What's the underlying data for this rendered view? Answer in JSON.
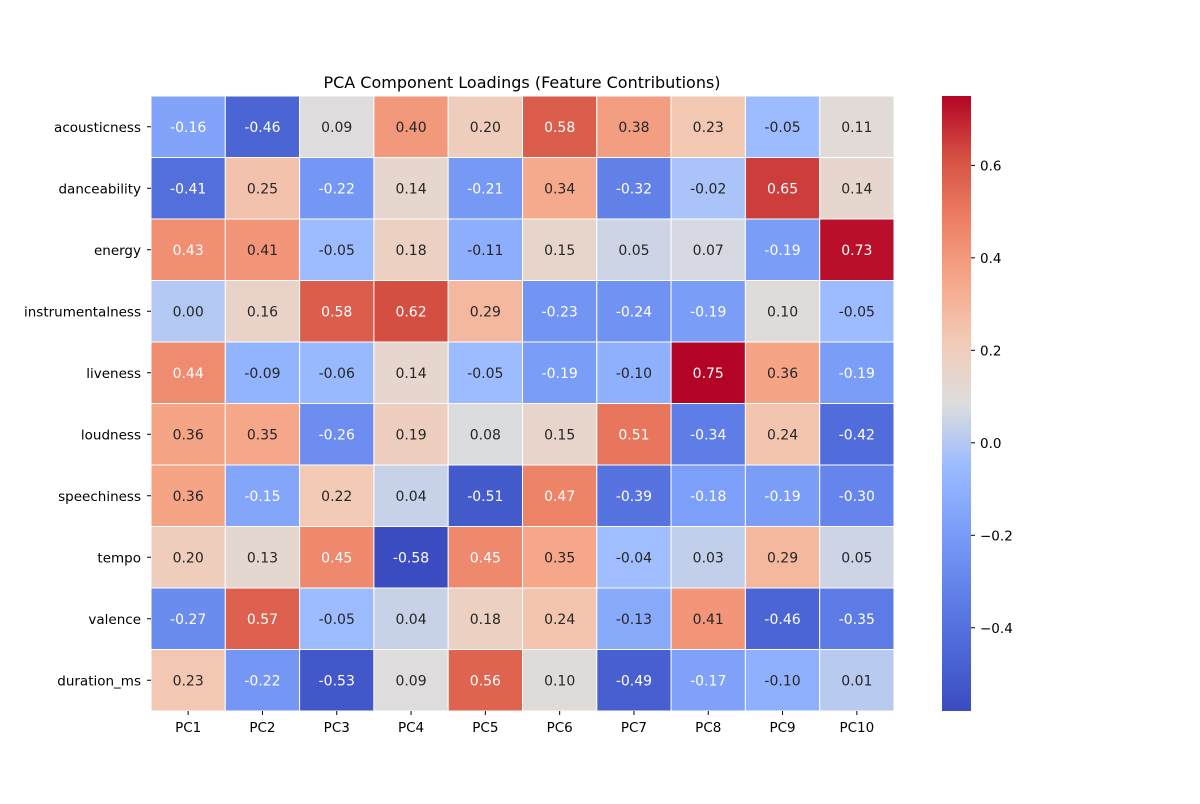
{
  "chart_data": {
    "type": "heatmap",
    "title": "PCA Component Loadings (Feature Contributions)",
    "xlabel": "",
    "ylabel": "",
    "colormap": "coolwarm",
    "colorbar": {
      "range": [
        -0.58,
        0.75
      ],
      "ticks": [
        -0.4,
        -0.2,
        0.0,
        0.2,
        0.4,
        0.6
      ],
      "tick_labels": [
        "−0.4",
        "−0.2",
        "0.0",
        "0.2",
        "0.4",
        "0.6"
      ]
    },
    "columns": [
      "PC1",
      "PC2",
      "PC3",
      "PC4",
      "PC5",
      "PC6",
      "PC7",
      "PC8",
      "PC9",
      "PC10"
    ],
    "rows": [
      "acousticness",
      "danceability",
      "energy",
      "instrumentalness",
      "liveness",
      "loudness",
      "speechiness",
      "tempo",
      "valence",
      "duration_ms"
    ],
    "values": [
      [
        -0.16,
        -0.46,
        0.09,
        0.4,
        0.2,
        0.58,
        0.38,
        0.23,
        -0.05,
        0.11
      ],
      [
        -0.41,
        0.25,
        -0.22,
        0.14,
        -0.21,
        0.34,
        -0.32,
        -0.02,
        0.65,
        0.14
      ],
      [
        0.43,
        0.41,
        -0.05,
        0.18,
        -0.11,
        0.15,
        0.05,
        0.07,
        -0.19,
        0.73
      ],
      [
        0.0,
        0.16,
        0.58,
        0.62,
        0.29,
        -0.23,
        -0.24,
        -0.19,
        0.1,
        -0.05
      ],
      [
        0.44,
        -0.09,
        -0.06,
        0.14,
        -0.05,
        -0.19,
        -0.1,
        0.75,
        0.36,
        -0.19
      ],
      [
        0.36,
        0.35,
        -0.26,
        0.19,
        0.08,
        0.15,
        0.51,
        -0.34,
        0.24,
        -0.42
      ],
      [
        0.36,
        -0.15,
        0.22,
        0.04,
        -0.51,
        0.47,
        -0.39,
        -0.18,
        -0.19,
        -0.3
      ],
      [
        0.2,
        0.13,
        0.45,
        -0.58,
        0.45,
        0.35,
        -0.04,
        0.03,
        0.29,
        0.05
      ],
      [
        -0.27,
        0.57,
        -0.05,
        0.04,
        0.18,
        0.24,
        -0.13,
        0.41,
        -0.46,
        -0.35
      ],
      [
        0.23,
        -0.22,
        -0.53,
        0.09,
        0.56,
        0.1,
        -0.49,
        -0.17,
        -0.1,
        0.01
      ]
    ],
    "annotation_format": "0.00",
    "grid": false
  }
}
